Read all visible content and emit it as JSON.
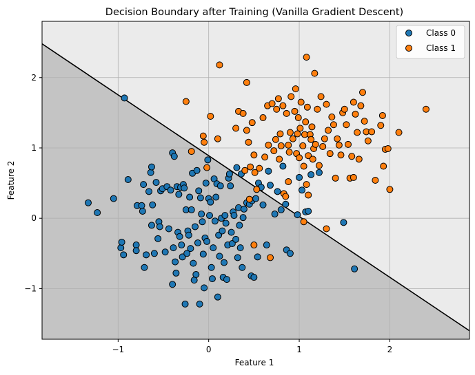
{
  "chart_data": {
    "type": "scatter",
    "title": "Decision Boundary after Training (Vanilla Gradient Descent)",
    "xlabel": "Feature 1",
    "ylabel": "Feature 2",
    "xlim": [
      -1.84,
      2.88
    ],
    "ylim": [
      -1.72,
      2.8
    ],
    "xticks": [
      -1,
      0,
      1,
      2
    ],
    "yticks": [
      -1,
      0,
      1,
      2
    ],
    "xtick_labels": [
      "−1",
      "0",
      "1",
      "2"
    ],
    "ytick_labels": [
      "−1",
      "0",
      "1",
      "2"
    ],
    "grid": true,
    "legend_position": "top-right",
    "region_colors": {
      "class_0": "#c4c4c4",
      "class_1": "#ebebeb"
    },
    "boundary": {
      "color": "#000000",
      "points": [
        [
          -1.84,
          2.48
        ],
        [
          2.88,
          -1.6
        ]
      ]
    },
    "series": [
      {
        "name": "Class 0",
        "color": "#1f77b4",
        "points": [
          [
            -0.93,
            1.71
          ],
          [
            -1.33,
            0.22
          ],
          [
            -1.23,
            0.08
          ],
          [
            -1.05,
            0.28
          ],
          [
            -0.97,
            -0.42
          ],
          [
            -0.96,
            -0.34
          ],
          [
            -0.94,
            -0.52
          ],
          [
            -0.89,
            0.55
          ],
          [
            -0.8,
            -0.38
          ],
          [
            -0.8,
            -0.46
          ],
          [
            -0.79,
            0.18
          ],
          [
            -0.74,
            0.18
          ],
          [
            -0.73,
            0.1
          ],
          [
            -0.72,
            0.48
          ],
          [
            -0.71,
            -0.7
          ],
          [
            -0.69,
            -0.52
          ],
          [
            -0.66,
            0.38
          ],
          [
            -0.64,
            0.65
          ],
          [
            -0.63,
            0.73
          ],
          [
            -0.63,
            -0.1
          ],
          [
            -0.62,
            0.19
          ],
          [
            -0.6,
            -0.5
          ],
          [
            -0.58,
            0.51
          ],
          [
            -0.56,
            -0.29
          ],
          [
            -0.55,
            -0.05
          ],
          [
            -0.54,
            -0.12
          ],
          [
            -0.53,
            0.39
          ],
          [
            -0.51,
            0.42
          ],
          [
            -0.48,
            -0.48
          ],
          [
            -0.46,
            0.45
          ],
          [
            -0.44,
            -0.15
          ],
          [
            -0.42,
            0.4
          ],
          [
            -0.4,
            0.93
          ],
          [
            -0.4,
            -0.94
          ],
          [
            -0.39,
            -0.42
          ],
          [
            -0.38,
            0.88
          ],
          [
            -0.37,
            -0.62
          ],
          [
            -0.36,
            -0.78
          ],
          [
            -0.35,
            0.45
          ],
          [
            -0.34,
            -0.2
          ],
          [
            -0.33,
            0.34
          ],
          [
            -0.32,
            -0.26
          ],
          [
            -0.31,
            0.44
          ],
          [
            -0.3,
            -0.38
          ],
          [
            -0.29,
            -0.55
          ],
          [
            -0.28,
            0.48
          ],
          [
            -0.27,
            0.43
          ],
          [
            -0.26,
            -1.22
          ],
          [
            -0.25,
            0.12
          ],
          [
            -0.24,
            -0.5
          ],
          [
            -0.23,
            -0.18
          ],
          [
            -0.22,
            -0.24
          ],
          [
            -0.21,
            0.3
          ],
          [
            -0.2,
            -0.43
          ],
          [
            -0.19,
            0.12
          ],
          [
            -0.18,
            0.64
          ],
          [
            -0.17,
            -0.64
          ],
          [
            -0.16,
            -0.88
          ],
          [
            -0.15,
            -0.12
          ],
          [
            -0.14,
            -0.8
          ],
          [
            -0.13,
            0.68
          ],
          [
            -0.12,
            -0.35
          ],
          [
            -0.11,
            0.39
          ],
          [
            -0.1,
            -1.22
          ],
          [
            -0.09,
            0.29
          ],
          [
            -0.08,
            0.06
          ],
          [
            -0.07,
            -0.05
          ],
          [
            -0.06,
            -0.51
          ],
          [
            -0.05,
            -0.99
          ],
          [
            -0.04,
            -0.28
          ],
          [
            -0.03,
            0.5
          ],
          [
            -0.02,
            -0.33
          ],
          [
            -0.01,
            0.83
          ],
          [
            0.0,
            0.28
          ],
          [
            0.01,
            0.04
          ],
          [
            0.02,
            0.23
          ],
          [
            0.03,
            -0.7
          ],
          [
            0.04,
            -0.86
          ],
          [
            0.05,
            -0.42
          ],
          [
            0.06,
            0.56
          ],
          [
            0.07,
            -0.04
          ],
          [
            0.08,
            0.3
          ],
          [
            0.09,
            0.49
          ],
          [
            0.1,
            -1.12
          ],
          [
            0.11,
            -0.24
          ],
          [
            0.12,
            -0.54
          ],
          [
            0.13,
            0.46
          ],
          [
            0.14,
            0.0
          ],
          [
            0.15,
            -0.18
          ],
          [
            0.16,
            -0.84
          ],
          [
            0.17,
            -0.63
          ],
          [
            0.18,
            0.04
          ],
          [
            0.19,
            -0.07
          ],
          [
            0.2,
            -0.87
          ],
          [
            0.21,
            -0.38
          ],
          [
            0.22,
            0.57
          ],
          [
            0.23,
            0.63
          ],
          [
            0.24,
            0.46
          ],
          [
            0.25,
            -0.2
          ],
          [
            0.26,
            -0.36
          ],
          [
            0.27,
            0.09
          ],
          [
            0.28,
            0.04
          ],
          [
            0.3,
            -0.3
          ],
          [
            0.31,
            0.72
          ],
          [
            0.32,
            -0.56
          ],
          [
            0.33,
            0.15
          ],
          [
            0.34,
            -0.1
          ],
          [
            0.35,
            -0.42
          ],
          [
            0.36,
            0.63
          ],
          [
            0.37,
            -0.7
          ],
          [
            0.38,
            0.01
          ],
          [
            0.39,
            0.13
          ],
          [
            0.42,
            0.22
          ],
          [
            0.45,
            0.2
          ],
          [
            0.47,
            -0.82
          ],
          [
            0.48,
            0.25
          ],
          [
            0.5,
            -0.84
          ],
          [
            0.52,
            0.28
          ],
          [
            0.54,
            -0.55
          ],
          [
            0.55,
            0.5
          ],
          [
            0.58,
            0.44
          ],
          [
            0.6,
            0.19
          ],
          [
            0.64,
            -0.38
          ],
          [
            0.66,
            0.67
          ],
          [
            0.68,
            0.47
          ],
          [
            0.73,
            0.06
          ],
          [
            0.76,
            0.38
          ],
          [
            0.8,
            0.12
          ],
          [
            0.82,
            0.74
          ],
          [
            0.85,
            0.2
          ],
          [
            0.86,
            -0.45
          ],
          [
            0.9,
            -0.5
          ],
          [
            0.98,
            0.05
          ],
          [
            1.0,
            0.58
          ],
          [
            1.03,
            0.4
          ],
          [
            1.07,
            0.09
          ],
          [
            1.1,
            0.1
          ],
          [
            1.13,
            0.62
          ],
          [
            1.22,
            0.65
          ],
          [
            1.49,
            -0.06
          ],
          [
            1.61,
            -0.72
          ]
        ]
      },
      {
        "name": "Class 1",
        "color": "#ff7f0e",
        "points": [
          [
            0.12,
            2.18
          ],
          [
            0.42,
            1.93
          ],
          [
            1.08,
            2.29
          ],
          [
            1.17,
            2.06
          ],
          [
            -0.25,
            1.66
          ],
          [
            0.02,
            1.45
          ],
          [
            -0.06,
            1.17
          ],
          [
            -0.05,
            1.08
          ],
          [
            -0.02,
            0.72
          ],
          [
            -0.19,
            0.95
          ],
          [
            0.1,
            1.13
          ],
          [
            0.3,
            1.28
          ],
          [
            0.33,
            1.52
          ],
          [
            0.38,
            1.49
          ],
          [
            0.4,
            0.68
          ],
          [
            0.42,
            1.25
          ],
          [
            0.44,
            1.08
          ],
          [
            0.46,
            0.73
          ],
          [
            0.48,
            1.36
          ],
          [
            0.5,
            0.9
          ],
          [
            0.51,
            0.65
          ],
          [
            0.53,
            0.41
          ],
          [
            0.56,
            0.71
          ],
          [
            0.6,
            1.43
          ],
          [
            0.62,
            0.87
          ],
          [
            0.65,
            1.6
          ],
          [
            0.66,
            1.04
          ],
          [
            0.7,
            1.63
          ],
          [
            0.72,
            0.96
          ],
          [
            0.74,
            1.12
          ],
          [
            0.75,
            1.55
          ],
          [
            0.77,
            1.7
          ],
          [
            0.78,
            0.84
          ],
          [
            0.79,
            1.2
          ],
          [
            0.8,
            1.03
          ],
          [
            0.82,
            1.6
          ],
          [
            0.83,
            0.35
          ],
          [
            0.85,
            0.31
          ],
          [
            0.86,
            1.49
          ],
          [
            0.88,
            1.04
          ],
          [
            0.89,
            0.94
          ],
          [
            0.9,
            1.22
          ],
          [
            0.91,
            1.73
          ],
          [
            0.93,
            1.13
          ],
          [
            0.95,
            1.52
          ],
          [
            0.96,
            1.84
          ],
          [
            0.97,
            0.92
          ],
          [
            0.98,
            1.2
          ],
          [
            0.99,
            1.43
          ],
          [
            1.0,
            0.86
          ],
          [
            1.01,
            1.28
          ],
          [
            1.02,
            1.65
          ],
          [
            1.04,
            1.03
          ],
          [
            1.05,
            0.74
          ],
          [
            1.06,
            1.19
          ],
          [
            1.07,
            1.37
          ],
          [
            1.08,
            0.48
          ],
          [
            1.09,
            1.58
          ],
          [
            1.1,
            0.89
          ],
          [
            1.12,
            1.19
          ],
          [
            1.13,
            1.12
          ],
          [
            1.14,
            1.3
          ],
          [
            1.15,
            0.84
          ],
          [
            1.16,
            0.99
          ],
          [
            1.18,
            1.05
          ],
          [
            1.2,
            1.55
          ],
          [
            1.22,
            0.75
          ],
          [
            1.24,
            1.73
          ],
          [
            1.26,
            1.02
          ],
          [
            1.28,
            1.13
          ],
          [
            1.3,
            1.62
          ],
          [
            1.32,
            1.25
          ],
          [
            1.34,
            0.92
          ],
          [
            1.36,
            1.44
          ],
          [
            1.38,
            1.33
          ],
          [
            1.4,
            0.57
          ],
          [
            1.42,
            1.13
          ],
          [
            1.44,
            1.04
          ],
          [
            1.46,
            0.9
          ],
          [
            1.48,
            1.5
          ],
          [
            1.5,
            1.55
          ],
          [
            1.52,
            1.33
          ],
          [
            1.54,
            1.05
          ],
          [
            1.56,
            0.57
          ],
          [
            1.58,
            0.88
          ],
          [
            1.6,
            1.65
          ],
          [
            1.62,
            1.48
          ],
          [
            1.64,
            1.22
          ],
          [
            1.66,
            0.84
          ],
          [
            1.68,
            1.6
          ],
          [
            1.7,
            1.79
          ],
          [
            1.72,
            1.38
          ],
          [
            1.74,
            1.23
          ],
          [
            1.76,
            1.1
          ],
          [
            1.8,
            1.23
          ],
          [
            1.84,
            0.54
          ],
          [
            1.9,
            1.32
          ],
          [
            1.92,
            1.46
          ],
          [
            1.93,
            0.74
          ],
          [
            1.95,
            0.98
          ],
          [
            1.98,
            0.99
          ],
          [
            2.0,
            0.41
          ],
          [
            2.1,
            1.22
          ],
          [
            2.4,
            1.55
          ],
          [
            0.45,
            0.27
          ],
          [
            0.5,
            -0.38
          ],
          [
            0.68,
            -0.56
          ],
          [
            1.05,
            -0.05
          ],
          [
            1.3,
            -0.15
          ],
          [
            1.1,
            0.33
          ],
          [
            1.6,
            0.58
          ],
          [
            0.88,
            0.52
          ]
        ]
      }
    ]
  }
}
